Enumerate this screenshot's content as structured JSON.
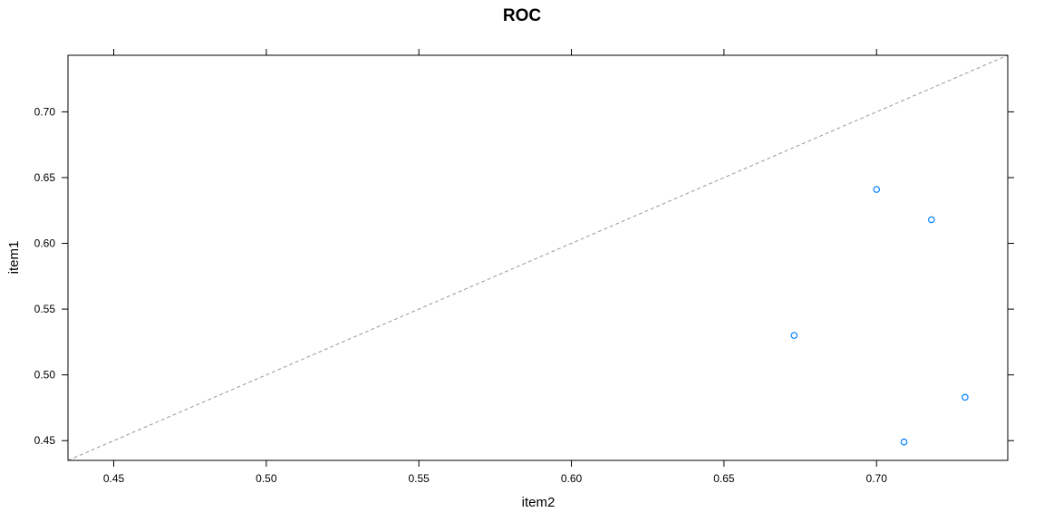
{
  "chart_data": {
    "type": "scatter",
    "title": "ROC",
    "xlabel": "item2",
    "ylabel": "item1",
    "xlim": [
      0.435,
      0.743
    ],
    "ylim": [
      0.435,
      0.743
    ],
    "x_ticks": [
      0.45,
      0.5,
      0.55,
      0.6,
      0.65,
      0.7
    ],
    "x_tick_labels": [
      "0.45",
      "0.50",
      "0.55",
      "0.60",
      "0.65",
      "0.70"
    ],
    "y_ticks": [
      0.45,
      0.5,
      0.55,
      0.6,
      0.65,
      0.7
    ],
    "y_tick_labels": [
      "0.45",
      "0.50",
      "0.55",
      "0.60",
      "0.65",
      "0.70"
    ],
    "grid": false,
    "reference_line": "diagonal y = x (dashed)",
    "points": [
      {
        "x": 0.7,
        "y": 0.641
      },
      {
        "x": 0.718,
        "y": 0.618
      },
      {
        "x": 0.673,
        "y": 0.53
      },
      {
        "x": 0.729,
        "y": 0.483
      },
      {
        "x": 0.709,
        "y": 0.449
      }
    ],
    "colors": {
      "point": "#0080ff",
      "reference_line": "#999999",
      "frame": "#000000"
    }
  }
}
